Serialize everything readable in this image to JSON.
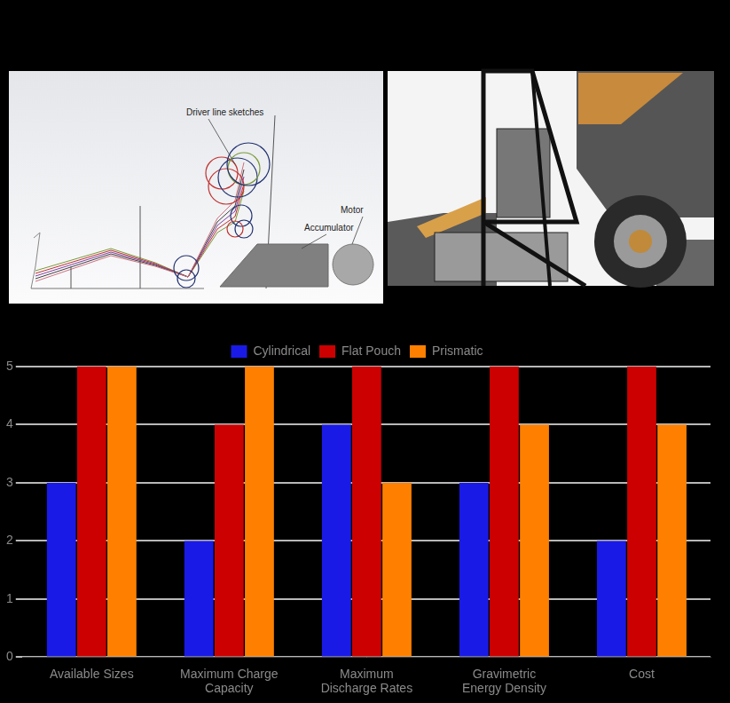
{
  "chart_data": {
    "type": "bar",
    "categories": [
      "Available Sizes",
      "Maximum Charge Capacity",
      "Maximum Discharge Rates",
      "Gravimetric Energy Density",
      "Cost"
    ],
    "series": [
      {
        "name": "Cylindrical",
        "color": "#1a1ae6",
        "values": [
          3,
          2,
          4,
          3,
          2
        ]
      },
      {
        "name": "Flat Pouch",
        "color": "#cc0000",
        "values": [
          5,
          4,
          5,
          5,
          5
        ]
      },
      {
        "name": "Prismatic",
        "color": "#ff8000",
        "values": [
          5,
          5,
          3,
          4,
          4
        ]
      }
    ],
    "ylim": [
      0,
      5
    ],
    "yticks": [
      0,
      1,
      2,
      3,
      4,
      5
    ],
    "grid": true,
    "legend": "top"
  },
  "images": [
    {
      "labels": [
        "Driver line sketches",
        "Accumulator",
        "Motor"
      ]
    }
  ]
}
